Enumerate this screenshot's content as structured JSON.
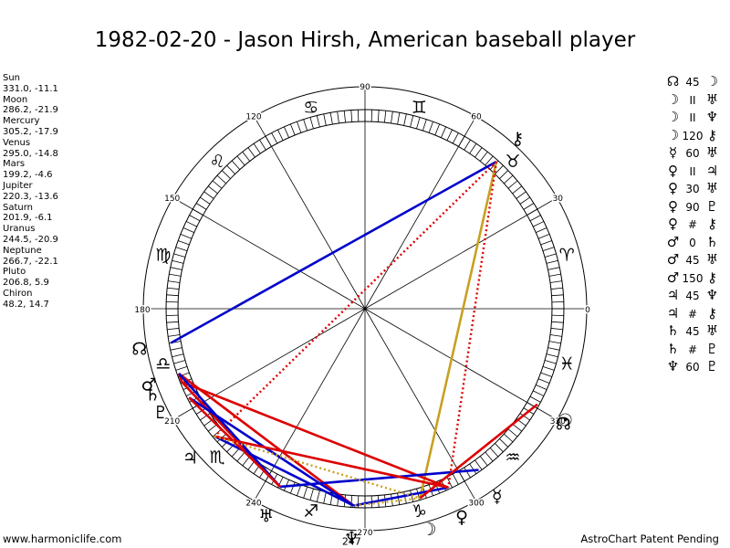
{
  "title": "1982-02-20 - Jason Hirsh, American baseball player",
  "footer_left": "www.harmoniclife.com",
  "footer_right": "AstroChart Patent Pending",
  "positions": [
    {
      "name": "Sun",
      "value": "331.0, -11.1"
    },
    {
      "name": "Moon",
      "value": "286.2, -21.9"
    },
    {
      "name": "Mercury",
      "value": "305.2, -17.9"
    },
    {
      "name": "Venus",
      "value": "295.0, -14.8"
    },
    {
      "name": "Mars",
      "value": "199.2, -4.6"
    },
    {
      "name": "Jupiter",
      "value": "220.3, -13.6"
    },
    {
      "name": "Saturn",
      "value": "201.9, -6.1"
    },
    {
      "name": "Uranus",
      "value": "244.5, -20.9"
    },
    {
      "name": "Neptune",
      "value": "266.7, -22.1"
    },
    {
      "name": "Pluto",
      "value": "206.8, 5.9"
    },
    {
      "name": "Chiron",
      "value": "48.2, 14.7"
    }
  ],
  "aspects": [
    {
      "a": "☊",
      "type": "45",
      "b": "☽"
    },
    {
      "a": "☽",
      "type": "II",
      "b": "♅"
    },
    {
      "a": "☽",
      "type": "II",
      "b": "♆"
    },
    {
      "a": "☽",
      "type": "120",
      "b": "⚷"
    },
    {
      "a": "☿",
      "type": "60",
      "b": "♅"
    },
    {
      "a": "♀",
      "type": "II",
      "b": "♃"
    },
    {
      "a": "♀",
      "type": "30",
      "b": "♅"
    },
    {
      "a": "♀",
      "type": "90",
      "b": "♇"
    },
    {
      "a": "♀",
      "type": "#",
      "b": "⚷"
    },
    {
      "a": "♂",
      "type": "0",
      "b": "♄"
    },
    {
      "a": "♂",
      "type": "45",
      "b": "♅"
    },
    {
      "a": "♂",
      "type": "150",
      "b": "⚷"
    },
    {
      "a": "♃",
      "type": "45",
      "b": "♆"
    },
    {
      "a": "♃",
      "type": "#",
      "b": "⚷"
    },
    {
      "a": "♄",
      "type": "45",
      "b": "♅"
    },
    {
      "a": "♄",
      "type": "#",
      "b": "♇"
    },
    {
      "a": "♆",
      "type": "60",
      "b": "♇"
    }
  ],
  "wheel": {
    "center_deg": 0,
    "degree_labels": [
      {
        "deg": 0,
        "text": "0"
      },
      {
        "deg": 30,
        "text": "30"
      },
      {
        "deg": 60,
        "text": "60"
      },
      {
        "deg": 90,
        "text": "90"
      },
      {
        "deg": 120,
        "text": "120"
      },
      {
        "deg": 150,
        "text": "150"
      },
      {
        "deg": 180,
        "text": "180"
      },
      {
        "deg": 210,
        "text": "210"
      },
      {
        "deg": 240,
        "text": "240"
      },
      {
        "deg": 270,
        "text": "270"
      },
      {
        "deg": 300,
        "text": "300"
      },
      {
        "deg": 330,
        "text": "330"
      }
    ],
    "extra_labels": [
      {
        "deg": 266.7,
        "text": "247"
      }
    ],
    "signs": [
      {
        "deg": 15,
        "glyph": "♈",
        "name": "aries-icon"
      },
      {
        "deg": 45,
        "glyph": "♉",
        "name": "taurus-icon"
      },
      {
        "deg": 75,
        "glyph": "♊",
        "name": "gemini-icon"
      },
      {
        "deg": 105,
        "glyph": "♋",
        "name": "cancer-icon"
      },
      {
        "deg": 135,
        "glyph": "♌",
        "name": "leo-icon"
      },
      {
        "deg": 165,
        "glyph": "♍",
        "name": "virgo-icon"
      },
      {
        "deg": 195,
        "glyph": "♎",
        "name": "libra-icon"
      },
      {
        "deg": 225,
        "glyph": "♏",
        "name": "scorpio-icon"
      },
      {
        "deg": 255,
        "glyph": "♐",
        "name": "sagittarius-icon"
      },
      {
        "deg": 285,
        "glyph": "♑",
        "name": "capricorn-icon"
      },
      {
        "deg": 315,
        "glyph": "♒",
        "name": "aquarius-icon"
      },
      {
        "deg": 345,
        "glyph": "♓",
        "name": "pisces-icon"
      }
    ],
    "planets": [
      {
        "id": "sun",
        "deg": 331.0,
        "glyph": "☉",
        "name": "sun-icon"
      },
      {
        "id": "moon",
        "deg": 286.2,
        "glyph": "☽",
        "name": "moon-icon"
      },
      {
        "id": "mercury",
        "deg": 305.2,
        "glyph": "☿",
        "name": "mercury-icon"
      },
      {
        "id": "venus",
        "deg": 295.0,
        "glyph": "♀",
        "name": "venus-icon"
      },
      {
        "id": "mars",
        "deg": 199.2,
        "glyph": "♂",
        "name": "mars-icon"
      },
      {
        "id": "jupiter",
        "deg": 220.3,
        "glyph": "♃",
        "name": "jupiter-icon"
      },
      {
        "id": "saturn",
        "deg": 201.9,
        "glyph": "♄",
        "name": "saturn-icon"
      },
      {
        "id": "uranus",
        "deg": 244.5,
        "glyph": "♅",
        "name": "uranus-icon"
      },
      {
        "id": "neptune",
        "deg": 266.7,
        "glyph": "♆",
        "name": "neptune-icon"
      },
      {
        "id": "pluto",
        "deg": 206.8,
        "glyph": "♇",
        "name": "pluto-icon"
      },
      {
        "id": "chiron",
        "deg": 48.2,
        "glyph": "⚷",
        "name": "chiron-icon"
      },
      {
        "id": "node",
        "deg": 190.0,
        "glyph": "☊",
        "name": "north-node-icon"
      },
      {
        "id": "point",
        "deg": 330.0,
        "glyph": "☊",
        "name": "south-node-icon"
      }
    ],
    "aspect_lines": [
      {
        "from": "chiron",
        "to": "node",
        "color": "#0000cc",
        "style": "solid"
      },
      {
        "from": "chiron",
        "to": "moon",
        "color": "#c8a020",
        "style": "solid"
      },
      {
        "from": "chiron",
        "to": "venus",
        "color": "#dd0000",
        "style": "dotted"
      },
      {
        "from": "chiron",
        "to": "jupiter",
        "color": "#dd0000",
        "style": "dotted"
      },
      {
        "from": "mars",
        "to": "saturn",
        "color": "#dd0000",
        "style": "solid"
      },
      {
        "from": "saturn",
        "to": "uranus",
        "color": "#dd0000",
        "style": "solid"
      },
      {
        "from": "mars",
        "to": "neptune",
        "color": "#dd0000",
        "style": "solid"
      },
      {
        "from": "saturn",
        "to": "venus",
        "color": "#dd0000",
        "style": "solid"
      },
      {
        "from": "mars",
        "to": "uranus",
        "color": "#0000cc",
        "style": "solid"
      },
      {
        "from": "jupiter",
        "to": "neptune",
        "color": "#0000cc",
        "style": "solid"
      },
      {
        "from": "pluto",
        "to": "neptune",
        "color": "#0000cc",
        "style": "solid"
      },
      {
        "from": "uranus",
        "to": "mercury",
        "color": "#0000cc",
        "style": "solid"
      },
      {
        "from": "neptune",
        "to": "venus",
        "color": "#0000cc",
        "style": "solid"
      },
      {
        "from": "pluto",
        "to": "uranus",
        "color": "#dd0000",
        "style": "solid"
      },
      {
        "from": "sun",
        "to": "moon",
        "color": "#dd0000",
        "style": "solid"
      },
      {
        "from": "venus",
        "to": "jupiter",
        "color": "#dd0000",
        "style": "solid"
      },
      {
        "from": "jupiter",
        "to": "moon",
        "color": "#c8a020",
        "style": "dotted"
      },
      {
        "from": "moon",
        "to": "neptune",
        "color": "#c8a020",
        "style": "dotted"
      }
    ]
  }
}
